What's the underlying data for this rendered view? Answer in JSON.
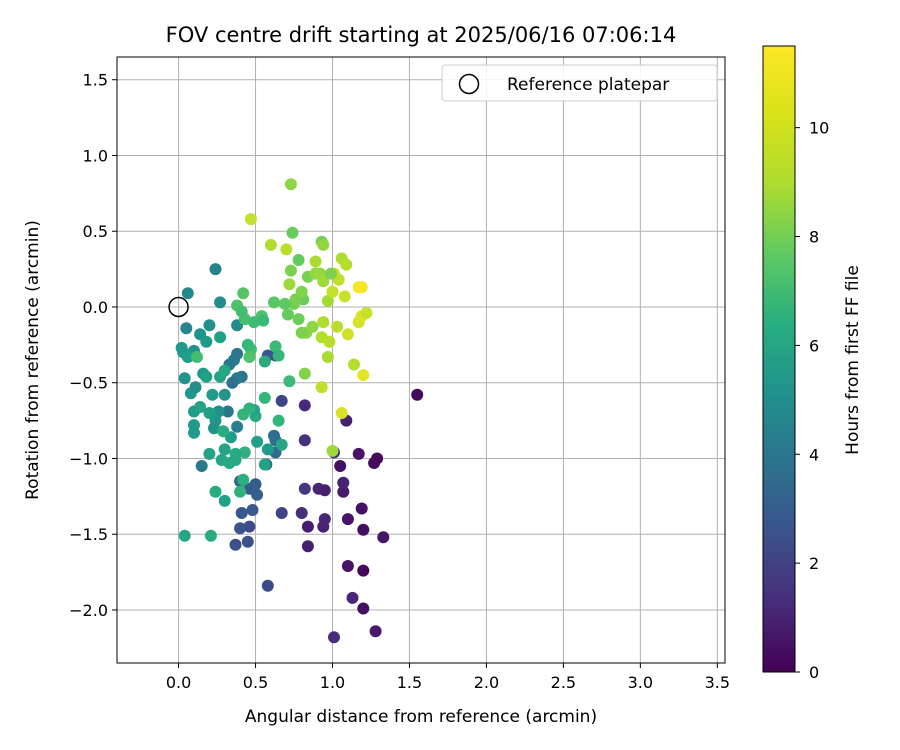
{
  "chart_data": {
    "type": "scatter",
    "title": "FOV centre drift starting at 2025/06/16 07:06:14",
    "xlabel": "Angular distance from reference (arcmin)",
    "ylabel": "Rotation from reference (arcmin)",
    "xlim": [
      -0.4,
      3.55
    ],
    "ylim": [
      -2.35,
      1.65
    ],
    "x_ticks": [
      0.0,
      0.5,
      1.0,
      1.5,
      2.0,
      2.5,
      3.0,
      3.5
    ],
    "y_ticks": [
      -2.0,
      -1.5,
      -1.0,
      -0.5,
      0.0,
      0.5,
      1.0,
      1.5
    ],
    "x_tick_labels": [
      "0.0",
      "0.5",
      "1.0",
      "1.5",
      "2.0",
      "2.5",
      "3.0",
      "3.5"
    ],
    "y_tick_labels": [
      "−2.0",
      "−1.5",
      "−1.0",
      "−0.5",
      "0.0",
      "0.5",
      "1.0",
      "1.5"
    ],
    "grid": true,
    "legend": {
      "position": "top-right",
      "entries": [
        "Reference platepar"
      ]
    },
    "reference_point": {
      "x": 0.0,
      "y": 0.0
    },
    "colorbar": {
      "label": "Hours from first FF file",
      "range": [
        0,
        11.5
      ],
      "ticks": [
        0,
        2,
        4,
        6,
        8,
        10
      ],
      "tick_labels": [
        "0",
        "2",
        "4",
        "6",
        "8",
        "10"
      ],
      "colormap": "viridis"
    },
    "points": [
      [
        1.55,
        -0.58,
        0.3
      ],
      [
        1.28,
        -2.14,
        0.8
      ],
      [
        1.01,
        -2.18,
        1.5
      ],
      [
        1.13,
        -1.92,
        1.3
      ],
      [
        1.2,
        -1.99,
        0.5
      ],
      [
        1.1,
        -1.71,
        0.6
      ],
      [
        1.2,
        -1.74,
        0.2
      ],
      [
        1.33,
        -1.52,
        0.7
      ],
      [
        1.2,
        -1.47,
        0.4
      ],
      [
        1.1,
        -1.4,
        0.6
      ],
      [
        1.19,
        -1.33,
        0.5
      ],
      [
        1.07,
        -1.22,
        0.9
      ],
      [
        1.07,
        -1.16,
        1.1
      ],
      [
        0.91,
        -1.2,
        1.2
      ],
      [
        0.95,
        -1.21,
        1.0
      ],
      [
        0.82,
        -1.2,
        1.8
      ],
      [
        0.8,
        -1.36,
        1.5
      ],
      [
        0.84,
        -1.45,
        0.9
      ],
      [
        0.94,
        -1.45,
        1.1
      ],
      [
        0.95,
        -1.4,
        1.2
      ],
      [
        0.84,
        -1.58,
        1.0
      ],
      [
        1.05,
        -1.05,
        0.5
      ],
      [
        1.17,
        -0.97,
        0.6
      ],
      [
        1.27,
        -1.03,
        0.4
      ],
      [
        1.29,
        -1.0,
        0.3
      ],
      [
        1.09,
        -0.75,
        1.0
      ],
      [
        0.82,
        -0.88,
        1.6
      ],
      [
        0.82,
        -0.65,
        1.4
      ],
      [
        1.01,
        -0.96,
        1.4
      ],
      [
        0.67,
        -1.36,
        2.3
      ],
      [
        0.58,
        -1.84,
        2.6
      ],
      [
        0.37,
        -1.57,
        2.8
      ],
      [
        0.45,
        -1.55,
        2.9
      ],
      [
        0.46,
        -1.45,
        2.6
      ],
      [
        0.4,
        -1.46,
        3.0
      ],
      [
        0.48,
        -1.34,
        3.2
      ],
      [
        0.41,
        -1.36,
        3.1
      ],
      [
        0.51,
        -1.24,
        3.5
      ],
      [
        0.46,
        -1.2,
        3.3
      ],
      [
        0.5,
        -1.17,
        3.4
      ],
      [
        0.4,
        -1.15,
        3.6
      ],
      [
        0.57,
        -1.04,
        3.7
      ],
      [
        0.63,
        -0.96,
        4.0
      ],
      [
        0.63,
        -0.88,
        4.2
      ],
      [
        0.62,
        -0.85,
        4.1
      ],
      [
        0.67,
        -0.62,
        2.4
      ],
      [
        0.58,
        -0.32,
        3.2
      ],
      [
        0.63,
        -0.32,
        3.0
      ],
      [
        0.41,
        -0.46,
        4.4
      ],
      [
        0.36,
        -0.35,
        4.8
      ],
      [
        0.38,
        -0.31,
        4.5
      ],
      [
        0.33,
        -0.38,
        4.6
      ],
      [
        0.38,
        -0.47,
        4.7
      ],
      [
        0.38,
        -0.79,
        4.9
      ],
      [
        0.32,
        -0.69,
        4.6
      ],
      [
        0.35,
        -0.5,
        4.3
      ],
      [
        0.15,
        -1.05,
        4.7
      ],
      [
        0.24,
        0.25,
        5.1
      ],
      [
        0.27,
        0.03,
        5.6
      ],
      [
        0.06,
        0.09,
        5.4
      ],
      [
        0.05,
        -0.14,
        5.2
      ],
      [
        0.38,
        -0.12,
        5.5
      ],
      [
        0.2,
        -0.12,
        5.8
      ],
      [
        0.14,
        -0.18,
        6.0
      ],
      [
        0.18,
        -0.23,
        6.3
      ],
      [
        0.27,
        -0.2,
        6.5
      ],
      [
        0.1,
        -0.29,
        5.9
      ],
      [
        0.03,
        -0.3,
        6.1
      ],
      [
        0.02,
        -0.27,
        6.2
      ],
      [
        0.06,
        -0.33,
        6.4
      ],
      [
        0.04,
        -0.47,
        6.0
      ],
      [
        0.08,
        -0.57,
        6.1
      ],
      [
        0.11,
        -0.53,
        5.7
      ],
      [
        0.16,
        -0.44,
        6.3
      ],
      [
        0.18,
        -0.46,
        6.5
      ],
      [
        0.27,
        -0.46,
        6.6
      ],
      [
        0.3,
        -0.42,
        6.8
      ],
      [
        0.22,
        -0.58,
        6.2
      ],
      [
        0.3,
        -0.58,
        6.0
      ],
      [
        0.26,
        -0.69,
        5.8
      ],
      [
        0.1,
        -0.69,
        6.4
      ],
      [
        0.14,
        -0.66,
        6.6
      ],
      [
        0.2,
        -0.7,
        6.5
      ],
      [
        0.1,
        -0.78,
        6.3
      ],
      [
        0.1,
        -0.83,
        6.2
      ],
      [
        0.24,
        -0.75,
        6.1
      ],
      [
        0.23,
        -0.8,
        5.9
      ],
      [
        0.34,
        -0.86,
        6.4
      ],
      [
        0.3,
        -0.94,
        6.7
      ],
      [
        0.2,
        -0.97,
        6.6
      ],
      [
        0.28,
        -1.01,
        6.8
      ],
      [
        0.33,
        -1.03,
        6.9
      ],
      [
        0.37,
        -1.01,
        7.0
      ],
      [
        0.29,
        -0.82,
        7.1
      ],
      [
        0.43,
        -0.96,
        7.3
      ],
      [
        0.37,
        -0.97,
        6.9
      ],
      [
        0.42,
        -1.14,
        7.2
      ],
      [
        0.4,
        -1.22,
        7.4
      ],
      [
        0.51,
        -0.89,
        6.5
      ],
      [
        0.5,
        -0.72,
        6.9
      ],
      [
        0.49,
        -0.68,
        6.7
      ],
      [
        0.56,
        -1.04,
        6.6
      ],
      [
        0.58,
        -0.94,
        6.3
      ],
      [
        0.67,
        -0.91,
        6.8
      ],
      [
        0.3,
        -1.28,
        6.5
      ],
      [
        0.24,
        -1.22,
        7.0
      ],
      [
        0.21,
        -1.51,
        7.1
      ],
      [
        0.04,
        -1.51,
        6.8
      ],
      [
        0.42,
        -0.71,
        7.5
      ],
      [
        0.46,
        -0.67,
        7.4
      ],
      [
        0.56,
        -0.6,
        7.6
      ],
      [
        0.65,
        -0.75,
        7.5
      ],
      [
        0.72,
        -0.49,
        7.8
      ],
      [
        0.63,
        -0.26,
        7.8
      ],
      [
        0.65,
        -0.32,
        7.6
      ],
      [
        0.47,
        -0.28,
        7.9
      ],
      [
        0.45,
        -0.25,
        7.7
      ],
      [
        0.43,
        -0.08,
        8.1
      ],
      [
        0.38,
        0.01,
        8.3
      ],
      [
        0.41,
        -0.03,
        8.0
      ],
      [
        0.42,
        0.09,
        8.4
      ],
      [
        0.49,
        -0.1,
        7.9
      ],
      [
        0.54,
        -0.06,
        8.2
      ],
      [
        0.55,
        -0.09,
        7.8
      ],
      [
        0.62,
        0.03,
        8.5
      ],
      [
        0.71,
        -0.05,
        8.7
      ],
      [
        0.78,
        -0.08,
        8.9
      ],
      [
        0.75,
        0.02,
        9.0
      ],
      [
        0.81,
        0.05,
        8.8
      ],
      [
        0.76,
        0.05,
        9.1
      ],
      [
        0.73,
        0.24,
        9.2
      ],
      [
        0.74,
        0.49,
        8.8
      ],
      [
        0.78,
        0.31,
        8.7
      ],
      [
        0.8,
        0.1,
        9.3
      ],
      [
        0.84,
        0.2,
        9.1
      ],
      [
        0.83,
        -0.17,
        9.4
      ],
      [
        0.8,
        -0.17,
        9.2
      ],
      [
        0.87,
        -0.13,
        9.5
      ],
      [
        0.82,
        -0.44,
        9.3
      ],
      [
        0.89,
        0.22,
        9.6
      ],
      [
        0.92,
        0.22,
        9.7
      ],
      [
        0.94,
        0.17,
        9.8
      ],
      [
        0.97,
        0.04,
        9.9
      ],
      [
        0.93,
        0.43,
        9.0
      ],
      [
        0.94,
        0.41,
        9.6
      ],
      [
        0.89,
        0.3,
        10.0
      ],
      [
        0.94,
        -0.1,
        10.1
      ],
      [
        0.93,
        -0.2,
        10.2
      ],
      [
        0.98,
        -0.23,
        10.3
      ],
      [
        0.97,
        -0.33,
        10.0
      ],
      [
        0.93,
        -0.53,
        10.4
      ],
      [
        1.0,
        0.1,
        10.5
      ],
      [
        1.01,
        0.22,
        10.6
      ],
      [
        1.04,
        0.18,
        10.4
      ],
      [
        1.03,
        -0.13,
        10.3
      ],
      [
        1.06,
        0.32,
        10.1
      ],
      [
        1.09,
        0.28,
        10.2
      ],
      [
        1.08,
        0.07,
        10.6
      ],
      [
        1.1,
        -0.18,
        10.7
      ],
      [
        1.17,
        -0.1,
        10.8
      ],
      [
        1.19,
        -0.06,
        10.9
      ],
      [
        1.22,
        -0.04,
        10.6
      ],
      [
        1.17,
        0.13,
        11.3
      ],
      [
        1.19,
        0.13,
        11.4
      ],
      [
        1.2,
        -0.45,
        11.1
      ],
      [
        1.14,
        -0.38,
        10.2
      ],
      [
        1.06,
        -0.7,
        10.8
      ],
      [
        0.73,
        0.81,
        9.5
      ],
      [
        0.6,
        0.41,
        10.1
      ],
      [
        0.47,
        0.58,
        10.5
      ],
      [
        0.7,
        0.38,
        10.3
      ],
      [
        0.99,
        0.22,
        9.2
      ],
      [
        0.72,
        0.15,
        9.8
      ],
      [
        0.56,
        -0.36,
        7.0
      ],
      [
        1.0,
        -0.95,
        9.8
      ],
      [
        0.69,
        0.02,
        8.6
      ],
      [
        0.46,
        -0.33,
        8.3
      ],
      [
        0.12,
        -0.33,
        8.0
      ]
    ]
  }
}
